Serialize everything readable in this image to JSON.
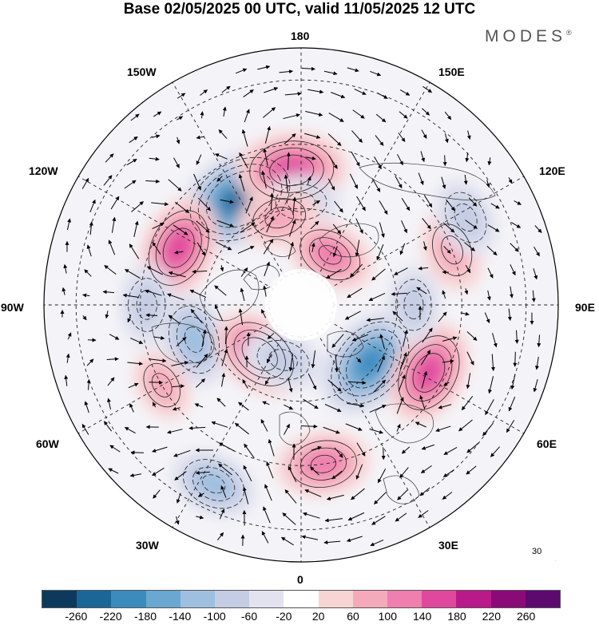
{
  "title": "Base 02/05/2025 00 UTC, valid 11/05/2025 12 UTC",
  "logo": {
    "text": "MODES",
    "mark": "®"
  },
  "longitude_labels": {
    "top": "180",
    "bottom": "0",
    "left": "90W",
    "right": "90E",
    "upper_left_1": "150W",
    "upper_left_2": "120W",
    "lower_left_1": "60W",
    "lower_left_2": "30W",
    "upper_right_1": "150E",
    "upper_right_2": "120E",
    "lower_right_1": "60E",
    "lower_right_2": "30E"
  },
  "reference_vector": {
    "value": "30"
  },
  "colorbar": {
    "colors": [
      "#0d3a5c",
      "#1a6696",
      "#3b8bbf",
      "#6aa7d1",
      "#9fbfe0",
      "#c5cde4",
      "#e3e3f0",
      "#ffffff",
      "#f8d5d5",
      "#f4aabb",
      "#ee7fae",
      "#e0489d",
      "#b81a8a",
      "#8a0a78",
      "#5c0a6e"
    ],
    "tick_labels": [
      "-260",
      "-220",
      "-180",
      "-140",
      "-100",
      "-60",
      "-20",
      "20",
      "60",
      "100",
      "140",
      "180",
      "220",
      "260"
    ]
  },
  "anomalies": [
    {
      "lon": -150,
      "lat": 52,
      "value": -230
    },
    {
      "lon": -176,
      "lat": 48,
      "value": 170
    },
    {
      "lon": -115,
      "lat": 48,
      "value": 150
    },
    {
      "lon": -90,
      "lat": 42,
      "value": -90
    },
    {
      "lon": -72,
      "lat": 55,
      "value": -130
    },
    {
      "lon": -40,
      "lat": 70,
      "value": 140
    },
    {
      "lon": -18,
      "lat": 72,
      "value": -90
    },
    {
      "lon": 50,
      "lat": 62,
      "value": -190
    },
    {
      "lon": 62,
      "lat": 45,
      "value": 150
    },
    {
      "lon": 8,
      "lat": 40,
      "value": 120
    },
    {
      "lon": -26,
      "lat": 28,
      "value": -110
    },
    {
      "lon": 110,
      "lat": 40,
      "value": 90
    },
    {
      "lon": 118,
      "lat": 32,
      "value": -90
    },
    {
      "lon": 150,
      "lat": 72,
      "value": 110
    },
    {
      "lon": 180,
      "lat": 58,
      "value": -80
    },
    {
      "lon": -166,
      "lat": 62,
      "value": 90
    },
    {
      "lon": -60,
      "lat": 40,
      "value": 60
    },
    {
      "lon": 90,
      "lat": 55,
      "value": -80
    }
  ]
}
